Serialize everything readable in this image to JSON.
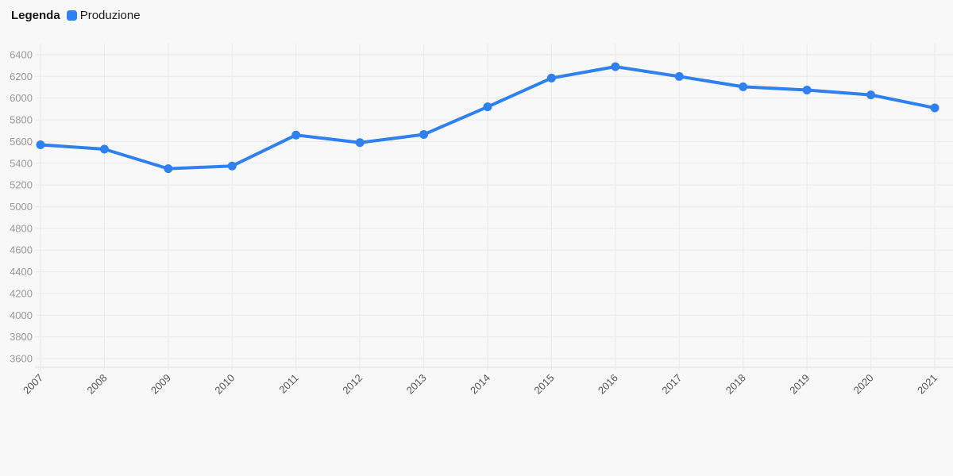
{
  "page": {
    "background": "#f8f8f8"
  },
  "legend": {
    "title": "Legenda",
    "items": [
      {
        "label": "Produzione",
        "color": "#2f80f0"
      }
    ]
  },
  "chart_data": {
    "type": "line",
    "title": "",
    "xlabel": "",
    "ylabel": "",
    "x": [
      "2007",
      "2008",
      "2009",
      "2010",
      "2011",
      "2012",
      "2013",
      "2014",
      "2015",
      "2016",
      "2017",
      "2018",
      "2019",
      "2020",
      "2021"
    ],
    "series": [
      {
        "name": "Produzione",
        "color": "#2f80f0",
        "values": [
          5570,
          5530,
          5350,
          5375,
          5660,
          5590,
          5665,
          5920,
          6185,
          6290,
          6200,
          6105,
          6075,
          6030,
          5910
        ]
      }
    ],
    "ylim": [
      3600,
      6400
    ],
    "y_ticks": [
      3600,
      3800,
      4000,
      4200,
      4400,
      4600,
      4800,
      5000,
      5200,
      5400,
      5600,
      5800,
      6000,
      6200,
      6400
    ],
    "grid": true,
    "legend_position": "top-left",
    "marker": "circle",
    "colors": {
      "line": "#2f80f0",
      "grid": "#ececec",
      "axis_line": "#e3e3e3",
      "y_label": "#9a9a9a",
      "x_label": "#565656",
      "background": "#f8f8f8"
    }
  }
}
